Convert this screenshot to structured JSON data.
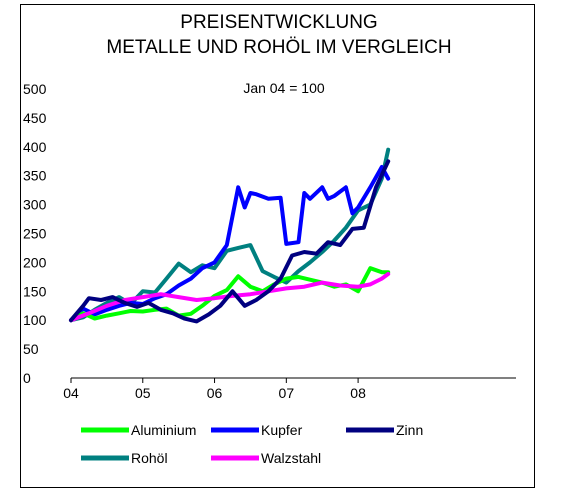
{
  "chart_data": {
    "type": "line",
    "title": "PREISENTWICKLUNG",
    "subtitle": "METALLE UND ROHÖL IM VERGLEICH",
    "annotation": "Jan 04 = 100",
    "ylim": [
      0,
      500
    ],
    "yticks": [
      0,
      50,
      100,
      150,
      200,
      250,
      300,
      350,
      400,
      450,
      500
    ],
    "yticklabels": [
      "0",
      "50",
      "100",
      "150",
      "200",
      "250",
      "300",
      "350",
      "400",
      "450",
      "500"
    ],
    "xlim": [
      2004,
      2010.2
    ],
    "xticks": [
      2004,
      2005,
      2006,
      2007,
      2008
    ],
    "xticklabels": [
      "04",
      "05",
      "06",
      "07",
      "08"
    ],
    "grid": false,
    "legend": "bottom",
    "series": [
      {
        "name": "Aluminium",
        "color": "#00ff00",
        "x": [
          2004.0,
          2004.17,
          2004.33,
          2004.5,
          2004.67,
          2004.83,
          2005.0,
          2005.17,
          2005.33,
          2005.5,
          2005.67,
          2005.83,
          2006.0,
          2006.17,
          2006.33,
          2006.5,
          2006.67,
          2006.83,
          2007.0,
          2007.17,
          2007.33,
          2007.5,
          2007.67,
          2007.83,
          2008.0,
          2008.17,
          2008.33,
          2008.42
        ],
        "y": [
          100,
          112,
          103,
          108,
          112,
          116,
          115,
          118,
          120,
          108,
          111,
          125,
          142,
          152,
          176,
          158,
          150,
          162,
          172,
          175,
          170,
          165,
          158,
          162,
          150,
          190,
          183,
          183
        ]
      },
      {
        "name": "Kupfer",
        "color": "#0000ff",
        "x": [
          2004.0,
          2004.17,
          2004.33,
          2004.5,
          2004.67,
          2004.83,
          2005.0,
          2005.17,
          2005.33,
          2005.5,
          2005.67,
          2005.83,
          2006.0,
          2006.17,
          2006.33,
          2006.42,
          2006.5,
          2006.58,
          2006.75,
          2006.92,
          2007.0,
          2007.17,
          2007.25,
          2007.33,
          2007.5,
          2007.58,
          2007.67,
          2007.83,
          2007.92,
          2008.0,
          2008.17,
          2008.33,
          2008.42
        ],
        "y": [
          100,
          120,
          110,
          118,
          125,
          130,
          128,
          138,
          145,
          160,
          172,
          190,
          200,
          230,
          330,
          295,
          320,
          318,
          310,
          312,
          232,
          235,
          320,
          310,
          330,
          310,
          315,
          330,
          285,
          295,
          330,
          365,
          345
        ]
      },
      {
        "name": "Zinn",
        "color": "#000080",
        "x": [
          2004.0,
          2004.17,
          2004.25,
          2004.42,
          2004.58,
          2004.75,
          2004.92,
          2005.08,
          2005.25,
          2005.42,
          2005.58,
          2005.75,
          2005.92,
          2006.08,
          2006.25,
          2006.42,
          2006.58,
          2006.75,
          2006.92,
          2007.08,
          2007.25,
          2007.42,
          2007.58,
          2007.75,
          2007.92,
          2008.08,
          2008.25,
          2008.42
        ],
        "y": [
          100,
          125,
          138,
          135,
          140,
          130,
          123,
          130,
          118,
          112,
          103,
          98,
          110,
          125,
          150,
          125,
          135,
          150,
          172,
          212,
          218,
          215,
          235,
          230,
          258,
          260,
          330,
          375
        ]
      },
      {
        "name": "Rohöl",
        "color": "#008080",
        "x": [
          2004.0,
          2004.17,
          2004.33,
          2004.5,
          2004.67,
          2004.83,
          2005.0,
          2005.17,
          2005.33,
          2005.5,
          2005.67,
          2005.83,
          2006.0,
          2006.17,
          2006.33,
          2006.5,
          2006.67,
          2006.83,
          2007.0,
          2007.17,
          2007.33,
          2007.5,
          2007.67,
          2007.83,
          2008.0,
          2008.17,
          2008.33,
          2008.42
        ],
        "y": [
          100,
          105,
          118,
          130,
          140,
          128,
          150,
          148,
          172,
          198,
          183,
          195,
          190,
          220,
          225,
          230,
          185,
          175,
          165,
          185,
          200,
          218,
          238,
          260,
          290,
          300,
          345,
          395
        ]
      },
      {
        "name": "Walzstahl",
        "color": "#ff00ff",
        "x": [
          2004.0,
          2004.25,
          2004.5,
          2004.75,
          2005.0,
          2005.25,
          2005.5,
          2005.75,
          2006.0,
          2006.25,
          2006.5,
          2006.75,
          2007.0,
          2007.25,
          2007.5,
          2007.75,
          2008.0,
          2008.17,
          2008.33,
          2008.42
        ],
        "y": [
          100,
          112,
          125,
          135,
          140,
          145,
          140,
          135,
          138,
          142,
          145,
          150,
          155,
          158,
          165,
          160,
          158,
          162,
          172,
          180
        ]
      }
    ]
  }
}
